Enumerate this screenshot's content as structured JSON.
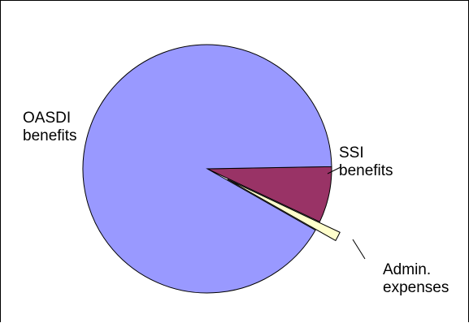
{
  "chart_data": {
    "type": "pie",
    "title": "",
    "series": [
      {
        "slices": [
          {
            "label_lines": [
              "OASDI",
              "benefits"
            ],
            "value": 91.5,
            "color": "#9999ff",
            "exploded": false
          },
          {
            "label_lines": [
              "SSI",
              "benefits"
            ],
            "value": 7.3,
            "color": "#993366",
            "exploded": false
          },
          {
            "label_lines": [
              "Admin.",
              "expenses"
            ],
            "value": 1.2,
            "color": "#ffffcc",
            "exploded": true
          }
        ]
      }
    ],
    "legend": "none",
    "start_angle_clockwise_from": "3 o'clock"
  }
}
